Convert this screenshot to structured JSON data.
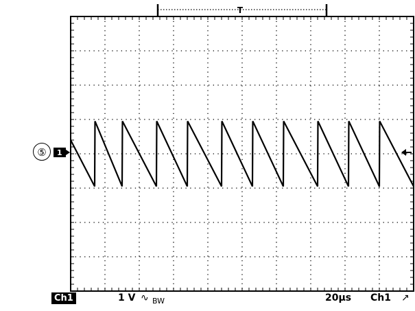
{
  "marker_label": "⑤",
  "trigger_label": "T",
  "channel_marker": "1",
  "status_bar": {
    "channel": "Ch1",
    "volts_per_div": "1 V",
    "coupling_symbol": "∿",
    "bandwidth_limit": "BW",
    "time_per_div": "20µs",
    "trigger_source": "Ch1",
    "trigger_slope": "↗"
  },
  "chart_data": {
    "type": "line",
    "title": "",
    "xlabel": "",
    "ylabel": "",
    "x_unit_per_div": "20µs",
    "y_unit_per_div": "1 V",
    "divisions": {
      "x": 10,
      "y": 8
    },
    "xlim": [
      0,
      10
    ],
    "ylim": [
      -4,
      4
    ],
    "grid": true,
    "waveform": "sawtooth",
    "series": [
      {
        "x": [
          0,
          0.7,
          0.71,
          1.5,
          1.51,
          2.5,
          2.51,
          3.4,
          3.41,
          4.4,
          4.41,
          5.3,
          5.31,
          6.2,
          6.21,
          7.2,
          7.21,
          8.1,
          8.11,
          9.0,
          9.01,
          10
        ],
        "values": [
          0.4,
          -0.95,
          0.95,
          -0.95,
          0.95,
          -0.95,
          0.95,
          -0.95,
          0.95,
          -0.95,
          0.95,
          -0.95,
          0.95,
          -0.95,
          0.95,
          -0.95,
          0.95,
          -0.95,
          0.95,
          -0.95,
          0.95,
          -0.95
        ]
      }
    ]
  }
}
